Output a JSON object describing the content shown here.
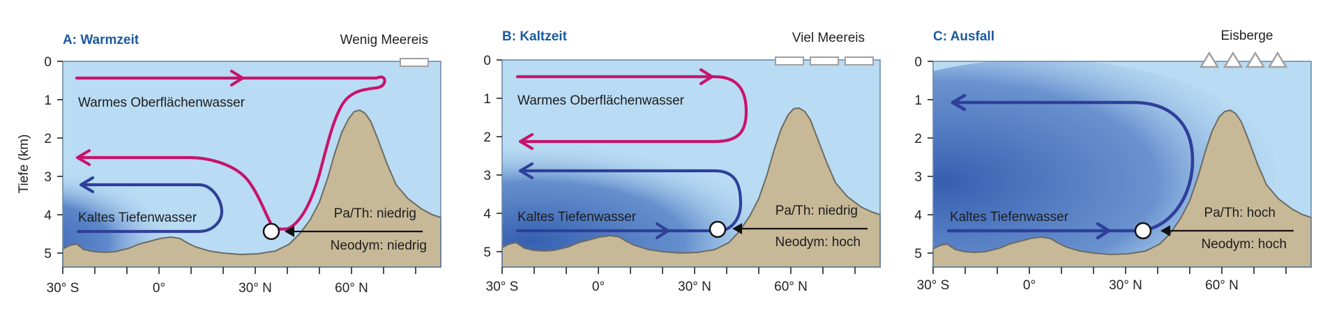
{
  "y_axis_label": "Tiefe (km)",
  "depth_ticks": [
    "0",
    "1",
    "2",
    "3",
    "4",
    "5"
  ],
  "lat_ticks": [
    "30° S",
    "0°",
    "30° N",
    "60° N"
  ],
  "colors": {
    "ocean": "#b9dbf3",
    "deep_water": "#2f58ad",
    "warm_arrow": "#c8136b",
    "cold_arrow": "#2f3f9a",
    "seafloor": "#c7b998",
    "title": "#1a5a9e"
  },
  "panels": [
    {
      "id": "A",
      "title": "A: Warmzeit",
      "ice_label": "Wenig Meereis",
      "warm_label": "Warmes Oberflächenwasser",
      "cold_label": "Kaltes Tiefenwasser",
      "pa_th": "Pa/Th: niedrig",
      "neodym": "Neodym: niedrig"
    },
    {
      "id": "B",
      "title": "B: Kaltzeit",
      "ice_label": "Viel Meereis",
      "warm_label": "Warmes Oberflächenwasser",
      "cold_label": "Kaltes Tiefenwasser",
      "pa_th": "Pa/Th: niedrig",
      "neodym": "Neodym: hoch"
    },
    {
      "id": "C",
      "title": "C: Ausfall",
      "ice_label": "Eisberge",
      "cold_label": "Kaltes Tiefenwasser",
      "pa_th": "Pa/Th: hoch",
      "neodym": "Neodym: hoch"
    }
  ]
}
